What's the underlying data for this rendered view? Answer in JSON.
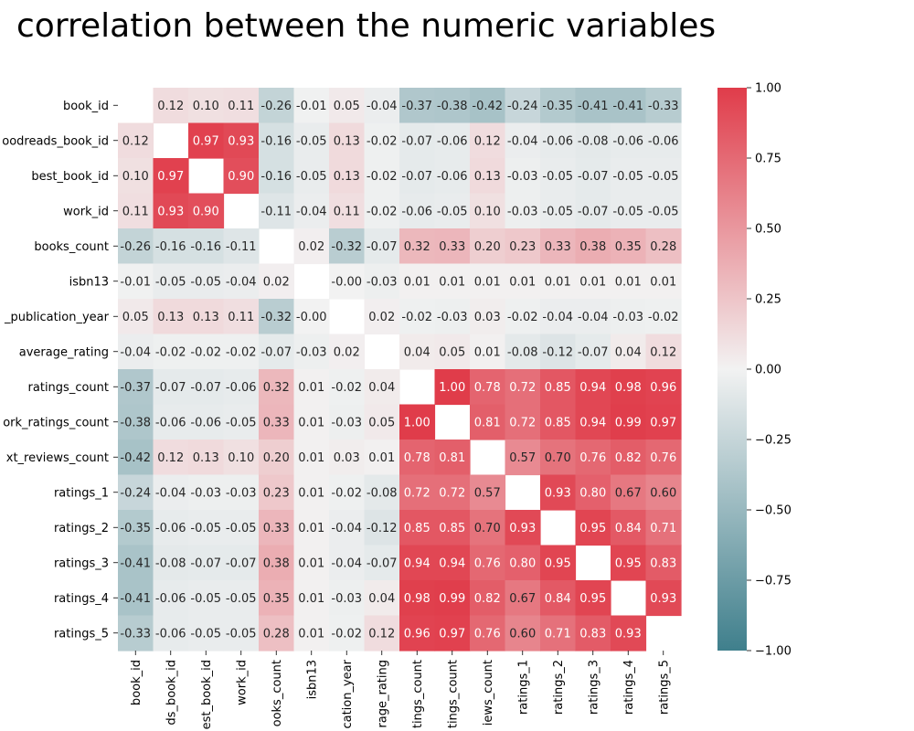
{
  "chart_data": {
    "type": "heatmap",
    "title": "correlation between the numeric variables",
    "variables": [
      "book_id",
      "goodreads_book_id",
      "best_book_id",
      "work_id",
      "books_count",
      "isbn13",
      "original_publication_year",
      "average_rating",
      "ratings_count",
      "work_ratings_count",
      "work_text_reviews_count",
      "ratings_1",
      "ratings_2",
      "ratings_3",
      "ratings_4",
      "ratings_5"
    ],
    "row_labels": [
      "book_id",
      "oodreads_book_id",
      "best_book_id",
      "work_id",
      "books_count",
      "isbn13",
      "_publication_year",
      "average_rating",
      "ratings_count",
      "ork_ratings_count",
      "xt_reviews_count",
      "ratings_1",
      "ratings_2",
      "ratings_3",
      "ratings_4",
      "ratings_5"
    ],
    "col_labels": [
      "book_id",
      "ds_book_id",
      "est_book_id",
      "work_id",
      "ooks_count",
      "isbn13",
      "cation_year",
      "rage_rating",
      "tings_count",
      "tings_count",
      "iews_count",
      "ratings_1",
      "ratings_2",
      "ratings_3",
      "ratings_4",
      "ratings_5"
    ],
    "values": [
      [
        null,
        0.12,
        0.1,
        0.11,
        -0.26,
        -0.01,
        0.05,
        -0.04,
        -0.37,
        -0.38,
        -0.42,
        -0.24,
        -0.35,
        -0.41,
        -0.41,
        -0.33
      ],
      [
        0.12,
        null,
        0.97,
        0.93,
        -0.16,
        -0.05,
        0.13,
        -0.02,
        -0.07,
        -0.06,
        0.12,
        -0.04,
        -0.06,
        -0.08,
        -0.06,
        -0.06
      ],
      [
        0.1,
        0.97,
        null,
        0.9,
        -0.16,
        -0.05,
        0.13,
        -0.02,
        -0.07,
        -0.06,
        0.13,
        -0.03,
        -0.05,
        -0.07,
        -0.05,
        -0.05
      ],
      [
        0.11,
        0.93,
        0.9,
        null,
        -0.11,
        -0.04,
        0.11,
        -0.02,
        -0.06,
        -0.05,
        0.1,
        -0.03,
        -0.05,
        -0.07,
        -0.05,
        -0.05
      ],
      [
        -0.26,
        -0.16,
        -0.16,
        -0.11,
        null,
        0.02,
        -0.32,
        -0.07,
        0.32,
        0.33,
        0.2,
        0.23,
        0.33,
        0.38,
        0.35,
        0.28
      ],
      [
        -0.01,
        -0.05,
        -0.05,
        -0.04,
        0.02,
        null,
        -0.0,
        -0.03,
        0.01,
        0.01,
        0.01,
        0.01,
        0.01,
        0.01,
        0.01,
        0.01
      ],
      [
        0.05,
        0.13,
        0.13,
        0.11,
        -0.32,
        -0.0,
        null,
        0.02,
        -0.02,
        -0.03,
        0.03,
        -0.02,
        -0.04,
        -0.04,
        -0.03,
        -0.02
      ],
      [
        -0.04,
        -0.02,
        -0.02,
        -0.02,
        -0.07,
        -0.03,
        0.02,
        null,
        0.04,
        0.05,
        0.01,
        -0.08,
        -0.12,
        -0.07,
        0.04,
        0.12
      ],
      [
        -0.37,
        -0.07,
        -0.07,
        -0.06,
        0.32,
        0.01,
        -0.02,
        0.04,
        null,
        1.0,
        0.78,
        0.72,
        0.85,
        0.94,
        0.98,
        0.96
      ],
      [
        -0.38,
        -0.06,
        -0.06,
        -0.05,
        0.33,
        0.01,
        -0.03,
        0.05,
        1.0,
        null,
        0.81,
        0.72,
        0.85,
        0.94,
        0.99,
        0.97
      ],
      [
        -0.42,
        0.12,
        0.13,
        0.1,
        0.2,
        0.01,
        0.03,
        0.01,
        0.78,
        0.81,
        null,
        0.57,
        0.7,
        0.76,
        0.82,
        0.76
      ],
      [
        -0.24,
        -0.04,
        -0.03,
        -0.03,
        0.23,
        0.01,
        -0.02,
        -0.08,
        0.72,
        0.72,
        0.57,
        null,
        0.93,
        0.8,
        0.67,
        0.6
      ],
      [
        -0.35,
        -0.06,
        -0.05,
        -0.05,
        0.33,
        0.01,
        -0.04,
        -0.12,
        0.85,
        0.85,
        0.7,
        0.93,
        null,
        0.95,
        0.84,
        0.71
      ],
      [
        -0.41,
        -0.08,
        -0.07,
        -0.07,
        0.38,
        0.01,
        -0.04,
        -0.07,
        0.94,
        0.94,
        0.76,
        0.8,
        0.95,
        null,
        0.95,
        0.83
      ],
      [
        -0.41,
        -0.06,
        -0.05,
        -0.05,
        0.35,
        0.01,
        -0.03,
        0.04,
        0.98,
        0.99,
        0.82,
        0.67,
        0.84,
        0.95,
        null,
        0.93
      ],
      [
        -0.33,
        -0.06,
        -0.05,
        -0.05,
        0.28,
        0.01,
        -0.02,
        0.12,
        0.96,
        0.97,
        0.76,
        0.6,
        0.71,
        0.83,
        0.93,
        null
      ]
    ],
    "diagonal": "blank",
    "colorscale": {
      "min": -1.0,
      "center": 0.0,
      "max": 1.0,
      "low_color": "#3f7f8c",
      "mid_color": "#f2f2f2",
      "high_color": "#e03c4a"
    },
    "colorbar": {
      "ticks": [
        -1.0,
        -0.75,
        -0.5,
        -0.25,
        0.0,
        0.25,
        0.5,
        0.75,
        1.0
      ],
      "tick_labels": [
        "−1.00",
        "−0.75",
        "−0.50",
        "−0.25",
        "0.00",
        "0.25",
        "0.50",
        "0.75",
        "1.00"
      ]
    },
    "annotations": "values shown in cells with two decimals",
    "grid": false,
    "legend": "colorbar-right"
  }
}
